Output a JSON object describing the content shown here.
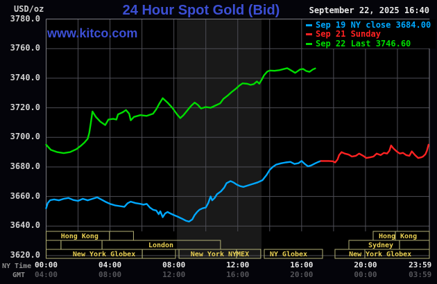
{
  "header": {
    "units_label": "USD/oz",
    "title": "24 Hour Spot Gold (Bid)",
    "datetime": "September 22, 2025 16:40"
  },
  "watermark": "www.kitco.com",
  "axis_labels": {
    "ny": "NY Time",
    "gmt": "GMT"
  },
  "legend": [
    {
      "label": "Sep 19 NY close 3684.00",
      "color": "#00a8ff"
    },
    {
      "label": "Sep 21 Sunday",
      "color": "#ff2222"
    },
    {
      "label": "Sep 22 Last 3746.60",
      "color": "#00dd00"
    }
  ],
  "colors": {
    "page_bg": "#04040a",
    "plot_bg": "#000000",
    "band": "#191919",
    "grid": "#4e4e56",
    "border": "#7d7d85",
    "title_blue": "#3c4fd4",
    "text_white": "#e8e8e8",
    "ytick_text": "#cfcfcf",
    "gmt_text": "#55555a",
    "axis_name_text": "#8f8f8f",
    "session_border": "#b3b176",
    "session_text": "#e8cf52"
  },
  "chart_data": {
    "type": "line",
    "title": "24 Hour Spot Gold (Bid)",
    "ylabel": "USD/oz",
    "ylim": [
      3620,
      3780
    ],
    "y_ticks": [
      3780,
      3760,
      3740,
      3720,
      3700,
      3680,
      3660,
      3640,
      3620
    ],
    "xlim_hours": [
      0,
      24
    ],
    "minor_gridline_hours": 2,
    "grid": true,
    "legend_position": "top-right",
    "nymex_band_hours": [
      8.19,
      13.49
    ],
    "x_ticks": [
      {
        "ny": "00:00",
        "gmt": "04:00",
        "t": 0
      },
      {
        "ny": "04:00",
        "gmt": "08:00",
        "t": 4
      },
      {
        "ny": "08:00",
        "gmt": "12:00",
        "t": 8
      },
      {
        "ny": "12:00",
        "gmt": "16:00",
        "t": 12
      },
      {
        "ny": "16:00",
        "gmt": "20:00",
        "t": 16
      },
      {
        "ny": "20:00",
        "gmt": "00:00",
        "t": 20
      },
      {
        "ny": "23:59",
        "gmt": "03:59",
        "t": 23.42
      }
    ],
    "series": [
      {
        "name": "Sep 19 NY close 3684.00",
        "color": "#00a8ff",
        "points": [
          [
            0,
            3652
          ],
          [
            0.1,
            3655.5
          ],
          [
            0.25,
            3657.5
          ],
          [
            0.5,
            3658
          ],
          [
            0.8,
            3657.4
          ],
          [
            1.1,
            3658.4
          ],
          [
            1.4,
            3659
          ],
          [
            1.7,
            3657.6
          ],
          [
            2.0,
            3657
          ],
          [
            2.3,
            3658.4
          ],
          [
            2.6,
            3657.4
          ],
          [
            2.9,
            3658.4
          ],
          [
            3.2,
            3659.4
          ],
          [
            3.45,
            3658
          ],
          [
            3.7,
            3656.5
          ],
          [
            4.0,
            3655
          ],
          [
            4.3,
            3654
          ],
          [
            4.6,
            3653.5
          ],
          [
            4.9,
            3653
          ],
          [
            5.1,
            3655.4
          ],
          [
            5.3,
            3656.5
          ],
          [
            5.6,
            3655.5
          ],
          [
            5.9,
            3655
          ],
          [
            6.1,
            3654.5
          ],
          [
            6.3,
            3655
          ],
          [
            6.5,
            3652.5
          ],
          [
            6.7,
            3651
          ],
          [
            6.9,
            3650.5
          ],
          [
            7.05,
            3648
          ],
          [
            7.15,
            3650
          ],
          [
            7.3,
            3646
          ],
          [
            7.45,
            3648.5
          ],
          [
            7.6,
            3649.5
          ],
          [
            7.8,
            3648.4
          ],
          [
            8.0,
            3647.4
          ],
          [
            8.2,
            3646.5
          ],
          [
            8.5,
            3645
          ],
          [
            8.75,
            3643.6
          ],
          [
            8.95,
            3643
          ],
          [
            9.15,
            3644.4
          ],
          [
            9.3,
            3647.4
          ],
          [
            9.45,
            3649.4
          ],
          [
            9.6,
            3651
          ],
          [
            9.8,
            3652
          ],
          [
            10.0,
            3652.5
          ],
          [
            10.15,
            3655.5
          ],
          [
            10.3,
            3660
          ],
          [
            10.4,
            3657.4
          ],
          [
            10.55,
            3659
          ],
          [
            10.7,
            3661.5
          ],
          [
            10.95,
            3663.5
          ],
          [
            11.15,
            3666
          ],
          [
            11.3,
            3669
          ],
          [
            11.55,
            3670.4
          ],
          [
            11.75,
            3669.4
          ],
          [
            11.95,
            3668
          ],
          [
            12.15,
            3667
          ],
          [
            12.35,
            3666.5
          ],
          [
            12.65,
            3667.5
          ],
          [
            12.95,
            3668.5
          ],
          [
            13.25,
            3669.5
          ],
          [
            13.55,
            3671
          ],
          [
            13.8,
            3674.5
          ],
          [
            14.0,
            3678
          ],
          [
            14.2,
            3680
          ],
          [
            14.4,
            3681.5
          ],
          [
            14.7,
            3682.4
          ],
          [
            15.0,
            3683
          ],
          [
            15.3,
            3683.4
          ],
          [
            15.55,
            3682
          ],
          [
            15.8,
            3682.5
          ],
          [
            16.0,
            3684
          ],
          [
            16.2,
            3682
          ],
          [
            16.4,
            3680.4
          ],
          [
            16.6,
            3681
          ],
          [
            16.85,
            3682.4
          ],
          [
            17.05,
            3683.4
          ],
          [
            17.2,
            3684
          ]
        ]
      },
      {
        "name": "Sep 21 Sunday",
        "color": "#ff2222",
        "points": [
          [
            17.2,
            3684
          ],
          [
            17.7,
            3684
          ],
          [
            17.95,
            3683.8
          ],
          [
            18.1,
            3683
          ],
          [
            18.25,
            3685
          ],
          [
            18.35,
            3688
          ],
          [
            18.5,
            3690
          ],
          [
            18.7,
            3689
          ],
          [
            18.95,
            3688.3
          ],
          [
            19.15,
            3687
          ],
          [
            19.4,
            3687.5
          ],
          [
            19.6,
            3689
          ],
          [
            19.85,
            3687.5
          ],
          [
            20.05,
            3686
          ],
          [
            20.3,
            3686.5
          ],
          [
            20.5,
            3687
          ],
          [
            20.7,
            3689
          ],
          [
            20.95,
            3688
          ],
          [
            21.15,
            3689.5
          ],
          [
            21.35,
            3689
          ],
          [
            21.5,
            3691
          ],
          [
            21.6,
            3694.5
          ],
          [
            21.75,
            3692.5
          ],
          [
            21.95,
            3690.5
          ],
          [
            22.15,
            3689
          ],
          [
            22.35,
            3689.5
          ],
          [
            22.55,
            3688
          ],
          [
            22.75,
            3687.5
          ],
          [
            22.9,
            3690.5
          ],
          [
            23.1,
            3688
          ],
          [
            23.3,
            3686
          ],
          [
            23.5,
            3686.5
          ],
          [
            23.6,
            3687
          ],
          [
            23.75,
            3688.5
          ],
          [
            23.85,
            3691
          ],
          [
            23.95,
            3695
          ]
        ]
      },
      {
        "name": "Sep 22 Last 3746.60",
        "color": "#00dd00",
        "points": [
          [
            0,
            3695
          ],
          [
            0.3,
            3691.5
          ],
          [
            0.7,
            3690
          ],
          [
            1.1,
            3689.3
          ],
          [
            1.5,
            3690
          ],
          [
            1.9,
            3692
          ],
          [
            2.2,
            3694.5
          ],
          [
            2.4,
            3696.5
          ],
          [
            2.6,
            3699
          ],
          [
            2.7,
            3703
          ],
          [
            2.8,
            3710
          ],
          [
            2.9,
            3717.5
          ],
          [
            3.1,
            3714
          ],
          [
            3.4,
            3710.5
          ],
          [
            3.7,
            3708.3
          ],
          [
            3.9,
            3712
          ],
          [
            4.2,
            3712.5
          ],
          [
            4.4,
            3712
          ],
          [
            4.5,
            3715.5
          ],
          [
            4.8,
            3717
          ],
          [
            5.0,
            3718.5
          ],
          [
            5.2,
            3716
          ],
          [
            5.3,
            3711.5
          ],
          [
            5.5,
            3713.8
          ],
          [
            5.9,
            3715
          ],
          [
            6.3,
            3714.5
          ],
          [
            6.7,
            3716
          ],
          [
            6.9,
            3719
          ],
          [
            7.1,
            3723
          ],
          [
            7.3,
            3726.5
          ],
          [
            7.6,
            3723.5
          ],
          [
            7.9,
            3720
          ],
          [
            8.2,
            3715.5
          ],
          [
            8.4,
            3713
          ],
          [
            8.6,
            3715
          ],
          [
            8.9,
            3719
          ],
          [
            9.1,
            3721.5
          ],
          [
            9.3,
            3723.5
          ],
          [
            9.5,
            3722
          ],
          [
            9.7,
            3719.5
          ],
          [
            10.0,
            3720.5
          ],
          [
            10.3,
            3720
          ],
          [
            10.6,
            3721.5
          ],
          [
            10.9,
            3723
          ],
          [
            11.1,
            3726
          ],
          [
            11.4,
            3728.5
          ],
          [
            11.6,
            3730.5
          ],
          [
            11.9,
            3733
          ],
          [
            12.1,
            3735
          ],
          [
            12.3,
            3736.5
          ],
          [
            12.6,
            3736.2
          ],
          [
            12.8,
            3735.5
          ],
          [
            13.0,
            3736
          ],
          [
            13.2,
            3737.8
          ],
          [
            13.35,
            3736.3
          ],
          [
            13.5,
            3739
          ],
          [
            13.65,
            3742
          ],
          [
            13.85,
            3744.5
          ],
          [
            14.0,
            3745.2
          ],
          [
            14.3,
            3745
          ],
          [
            14.6,
            3745.4
          ],
          [
            14.9,
            3746.2
          ],
          [
            15.1,
            3746.8
          ],
          [
            15.4,
            3744.9
          ],
          [
            15.6,
            3743.6
          ],
          [
            15.9,
            3745.9
          ],
          [
            16.1,
            3746.2
          ],
          [
            16.3,
            3744.8
          ],
          [
            16.5,
            3744.3
          ],
          [
            16.7,
            3745.9
          ],
          [
            16.85,
            3746.6
          ]
        ]
      }
    ],
    "sessions": {
      "boxes": [
        {
          "row": 0,
          "t0": 0,
          "t1": 3.97
        },
        {
          "row": 0,
          "t0": 3.97,
          "t1": 5.47
        },
        {
          "row": 0,
          "t0": 20.48,
          "t1": 21.87
        },
        {
          "row": 0,
          "t0": 21.87,
          "t1": 24
        },
        {
          "row": 1,
          "t0": 0,
          "t1": 0.93
        },
        {
          "row": 1,
          "t0": 0.93,
          "t1": 3.5
        },
        {
          "row": 1,
          "t0": 3.5,
          "t1": 10.92
        },
        {
          "row": 1,
          "t0": 18.96,
          "t1": 22.13
        },
        {
          "row": 1,
          "t0": 22.13,
          "t1": 24
        },
        {
          "row": 2,
          "t0": 0,
          "t1": 6.02
        },
        {
          "row": 2,
          "t0": 6.02,
          "t1": 8.1
        },
        {
          "row": 2,
          "t0": 8.32,
          "t1": 11.92
        },
        {
          "row": 2,
          "t0": 11.92,
          "t1": 13.44
        },
        {
          "row": 2,
          "t0": 13.66,
          "t1": 17.31
        },
        {
          "row": 2,
          "t0": 18.09,
          "t1": 19.96
        },
        {
          "row": 2,
          "t0": 19.96,
          "t1": 24
        }
      ],
      "labels": [
        {
          "row": 0,
          "t": 2.1,
          "text": "Hong Kong"
        },
        {
          "row": 0,
          "t": 21.35,
          "text": "Hong"
        },
        {
          "row": 0,
          "t": 22.7,
          "text": "Kong"
        },
        {
          "row": 1,
          "t": 7.19,
          "text": "London"
        },
        {
          "row": 1,
          "t": 20.96,
          "text": "Sydney"
        },
        {
          "row": 2,
          "t": 3.63,
          "text": "New York Globex"
        },
        {
          "row": 2,
          "t": 10.88,
          "text": "New York NYMEX"
        },
        {
          "row": 2,
          "t": 15.18,
          "text": "NY Globex"
        },
        {
          "row": 2,
          "t": 19.36,
          "text": "New"
        },
        {
          "row": 2,
          "t": 21.44,
          "text": "York Globex"
        }
      ]
    }
  }
}
